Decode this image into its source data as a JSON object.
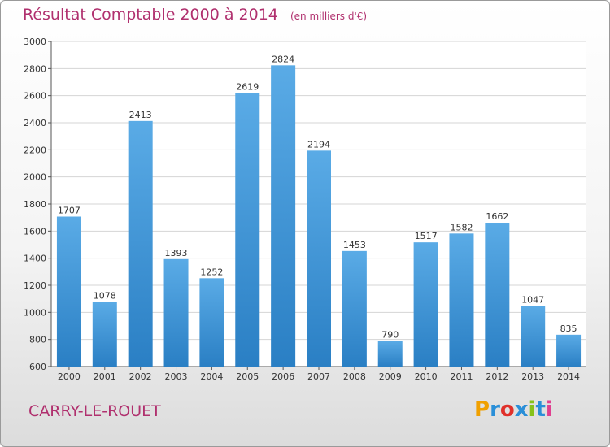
{
  "chart_data": {
    "type": "bar",
    "title": "Résultat Comptable 2000 à 2014",
    "subtitle": "(en milliers d'€)",
    "categories": [
      "2000",
      "2001",
      "2002",
      "2003",
      "2004",
      "2005",
      "2006",
      "2007",
      "2008",
      "2009",
      "2010",
      "2011",
      "2012",
      "2013",
      "2014"
    ],
    "values": [
      1707,
      1078,
      2413,
      1393,
      1252,
      2619,
      2824,
      2194,
      1453,
      790,
      1517,
      1582,
      1662,
      1047,
      835
    ],
    "ylim": [
      600,
      3000
    ],
    "yticks": [
      600,
      800,
      1000,
      1200,
      1400,
      1600,
      1800,
      2000,
      2200,
      2400,
      2600,
      2800,
      3000
    ],
    "grid": true,
    "bar_color_top": "#5aabe6",
    "bar_color_bottom": "#2a7fc4"
  },
  "footer": {
    "place": "CARRY-LE-ROUET",
    "logo_letters": [
      "P",
      "r",
      "o",
      "x",
      "i",
      "t",
      "i"
    ],
    "logo_colors": [
      "#f0a000",
      "#2a8fd8",
      "#e0302a",
      "#2a8fd8",
      "#86c21a",
      "#2a8fd8",
      "#e04090"
    ]
  }
}
